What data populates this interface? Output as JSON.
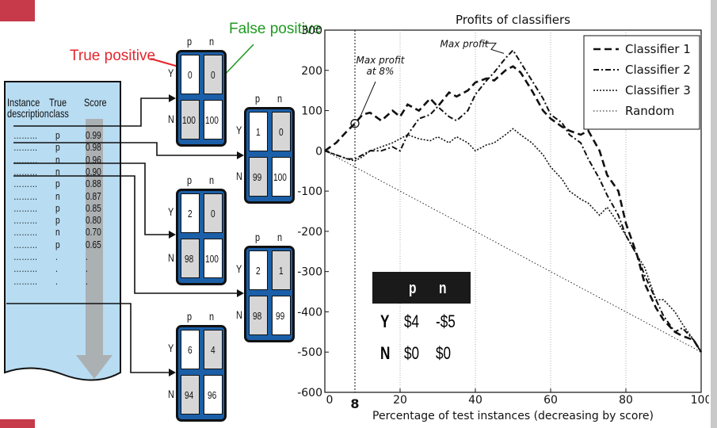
{
  "annotations": {
    "true_positive": "True positive",
    "false_positive": "False positive"
  },
  "table": {
    "headers": [
      "Instance description",
      "True class",
      "Score"
    ],
    "rows": [
      {
        "desc": "………",
        "cls": "p",
        "score": "0.99"
      },
      {
        "desc": "………",
        "cls": "p",
        "score": "0.98"
      },
      {
        "desc": "………",
        "cls": "n",
        "score": "0.96"
      },
      {
        "desc": "………",
        "cls": "n",
        "score": "0.90"
      },
      {
        "desc": "………",
        "cls": "p",
        "score": "0.88"
      },
      {
        "desc": "………",
        "cls": "n",
        "score": "0.87"
      },
      {
        "desc": "………",
        "cls": "p",
        "score": "0.85"
      },
      {
        "desc": "………",
        "cls": "p",
        "score": "0.80"
      },
      {
        "desc": "………",
        "cls": "n",
        "score": "0.70"
      },
      {
        "desc": "………",
        "cls": "p",
        "score": "0.65"
      },
      {
        "desc": "………",
        "cls": ".",
        "score": "."
      },
      {
        "desc": "………",
        "cls": ".",
        "score": "."
      },
      {
        "desc": "………",
        "cls": ".",
        "score": "."
      }
    ]
  },
  "matrices": [
    {
      "col_labels": [
        "p",
        "n"
      ],
      "row_labels": [
        "Y",
        "N"
      ],
      "cells": [
        "0",
        "0",
        "100",
        "100"
      ]
    },
    {
      "col_labels": [
        "p",
        "n"
      ],
      "row_labels": [
        "Y",
        "N"
      ],
      "cells": [
        "1",
        "0",
        "99",
        "100"
      ]
    },
    {
      "col_labels": [
        "p",
        "n"
      ],
      "row_labels": [
        "Y",
        "N"
      ],
      "cells": [
        "2",
        "0",
        "98",
        "100"
      ]
    },
    {
      "col_labels": [
        "p",
        "n"
      ],
      "row_labels": [
        "Y",
        "N"
      ],
      "cells": [
        "2",
        "1",
        "98",
        "99"
      ]
    },
    {
      "col_labels": [
        "p",
        "n"
      ],
      "row_labels": [
        "Y",
        "N"
      ],
      "cells": [
        "6",
        "4",
        "94",
        "96"
      ]
    }
  ],
  "chart_data": {
    "type": "line",
    "title": "Profits of classifiers",
    "xlabel": "Percentage of test instances (decreasing by score)",
    "ylabel": "",
    "xlim": [
      0,
      100
    ],
    "ylim": [
      -600,
      300
    ],
    "x_ticks": [
      "0",
      "20",
      "40",
      "60",
      "80",
      "100"
    ],
    "y_ticks": [
      "300",
      "200",
      "100",
      "0",
      "-100",
      "-200",
      "-300",
      "-400",
      "-500",
      "-600"
    ],
    "extra_x_tick": "8",
    "grid": "vertical dotted",
    "legend_position": "top-right",
    "annotations": [
      {
        "text": "Max profit",
        "x": 48,
        "y": 250
      },
      {
        "text": "Max profit\nat 8%",
        "x": 8,
        "y": 68
      }
    ],
    "series": [
      {
        "name": "Classifier 1",
        "style": "dashed",
        "x": [
          0,
          3,
          6,
          8,
          10,
          12,
          15,
          18,
          20,
          22,
          25,
          28,
          30,
          33,
          35,
          38,
          40,
          43,
          45,
          48,
          50,
          52,
          55,
          58,
          60,
          63,
          65,
          68,
          70,
          73,
          75,
          78,
          80,
          83,
          85,
          88,
          90,
          93,
          95,
          98,
          100
        ],
        "y": [
          0,
          20,
          50,
          68,
          90,
          95,
          75,
          100,
          85,
          115,
          100,
          130,
          110,
          145,
          135,
          150,
          170,
          180,
          175,
          200,
          210,
          195,
          150,
          100,
          80,
          60,
          50,
          40,
          50,
          0,
          -60,
          -100,
          -180,
          -260,
          -330,
          -390,
          -420,
          -450,
          -460,
          -470,
          -500
        ]
      },
      {
        "name": "Classifier 2",
        "style": "dashdot",
        "x": [
          0,
          3,
          6,
          8,
          10,
          12,
          15,
          18,
          20,
          22,
          25,
          28,
          30,
          33,
          35,
          38,
          40,
          43,
          45,
          48,
          50,
          52,
          55,
          58,
          60,
          63,
          65,
          68,
          70,
          73,
          75,
          78,
          80,
          83,
          85,
          88,
          90,
          93,
          95,
          98,
          100
        ],
        "y": [
          0,
          -10,
          -20,
          -20,
          -10,
          0,
          0,
          10,
          0,
          40,
          80,
          90,
          110,
          85,
          75,
          100,
          140,
          175,
          195,
          230,
          250,
          220,
          175,
          130,
          90,
          70,
          40,
          20,
          -20,
          -70,
          -110,
          -160,
          -210,
          -260,
          -310,
          -370,
          -410,
          -450,
          -440,
          -470,
          -500
        ]
      },
      {
        "name": "Classifier 3",
        "style": "dotted",
        "x": [
          0,
          3,
          6,
          8,
          10,
          12,
          15,
          18,
          20,
          22,
          25,
          28,
          30,
          33,
          35,
          38,
          40,
          43,
          45,
          48,
          50,
          52,
          55,
          58,
          60,
          63,
          65,
          68,
          70,
          73,
          75,
          78,
          80,
          83,
          85,
          88,
          90,
          93,
          95,
          98,
          100
        ],
        "y": [
          0,
          -10,
          -20,
          -25,
          -15,
          0,
          10,
          20,
          30,
          40,
          30,
          25,
          35,
          20,
          35,
          20,
          0,
          15,
          20,
          40,
          55,
          40,
          20,
          -10,
          -40,
          -70,
          -100,
          -120,
          -130,
          -160,
          -140,
          -180,
          -210,
          -260,
          -290,
          -370,
          -370,
          -400,
          -430,
          -470,
          -500
        ]
      },
      {
        "name": "Random",
        "style": "fine-dotted",
        "x": [
          0,
          100
        ],
        "y": [
          0,
          -500
        ]
      }
    ]
  },
  "cost_table": {
    "col_labels": [
      "p",
      "n"
    ],
    "rows": [
      {
        "label": "Y",
        "p": "$4",
        "n": "-$5"
      },
      {
        "label": "N",
        "p": "$0",
        "n": "$0"
      }
    ]
  }
}
